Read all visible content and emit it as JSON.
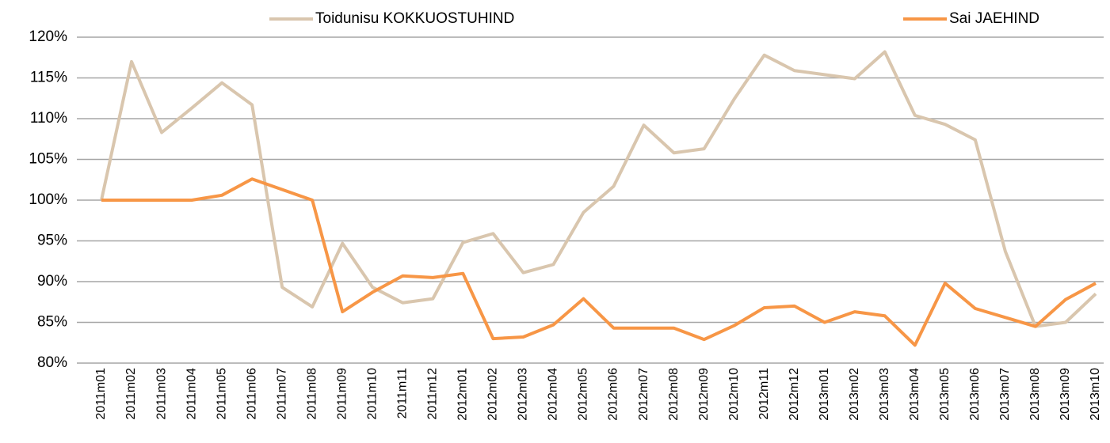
{
  "chart_data": {
    "type": "line",
    "categories": [
      "2011m01",
      "2011m02",
      "2011m03",
      "2011m04",
      "2011m05",
      "2011m06",
      "2011m07",
      "2011m08",
      "2011m09",
      "2011m10",
      "2011m11",
      "2011m12",
      "2012m01",
      "2012m02",
      "2012m03",
      "2012m04",
      "2012m05",
      "2012m06",
      "2012m07",
      "2012m08",
      "2012m09",
      "2012m10",
      "2012m11",
      "2012m12",
      "2013m01",
      "2013m02",
      "2013m03",
      "2013m04",
      "2013m05",
      "2013m06",
      "2013m07",
      "2013m08",
      "2013m09",
      "2013m10"
    ],
    "series": [
      {
        "name": "Toidunisu KOKKUOSTUHIND",
        "color": "#d9c6ae",
        "values": [
          100,
          117,
          108.3,
          111.3,
          114.4,
          111.7,
          89.3,
          86.9,
          94.7,
          89.3,
          87.4,
          87.9,
          94.8,
          95.9,
          91.1,
          92.1,
          98.5,
          101.7,
          109.2,
          105.8,
          106.3,
          112.4,
          117.8,
          115.9,
          115.4,
          114.9,
          118.2,
          110.4,
          109.3,
          107.4,
          93.7,
          84.5,
          85.0,
          88.5
        ]
      },
      {
        "name": "Sai JAEHIND",
        "color": "#f79646",
        "values": [
          100,
          100,
          100,
          100,
          100.6,
          102.6,
          101.3,
          100,
          86.3,
          88.7,
          90.7,
          90.5,
          91.0,
          83.0,
          83.2,
          84.7,
          87.9,
          84.3,
          84.3,
          84.3,
          82.9,
          84.6,
          86.8,
          87.0,
          85.0,
          86.3,
          85.8,
          82.2,
          89.8,
          86.7,
          85.6,
          84.5,
          87.8,
          89.8
        ]
      }
    ],
    "ylim": [
      80,
      120
    ],
    "yticks": [
      {
        "value": 80,
        "label": "80%"
      },
      {
        "value": 85,
        "label": "85%"
      },
      {
        "value": 90,
        "label": "90%"
      },
      {
        "value": 95,
        "label": "95%"
      },
      {
        "value": 100,
        "label": "100%"
      },
      {
        "value": 105,
        "label": "105%"
      },
      {
        "value": 110,
        "label": "110%"
      },
      {
        "value": 115,
        "label": "115%"
      },
      {
        "value": 120,
        "label": "120%"
      }
    ],
    "grid": true,
    "legend": "top"
  }
}
